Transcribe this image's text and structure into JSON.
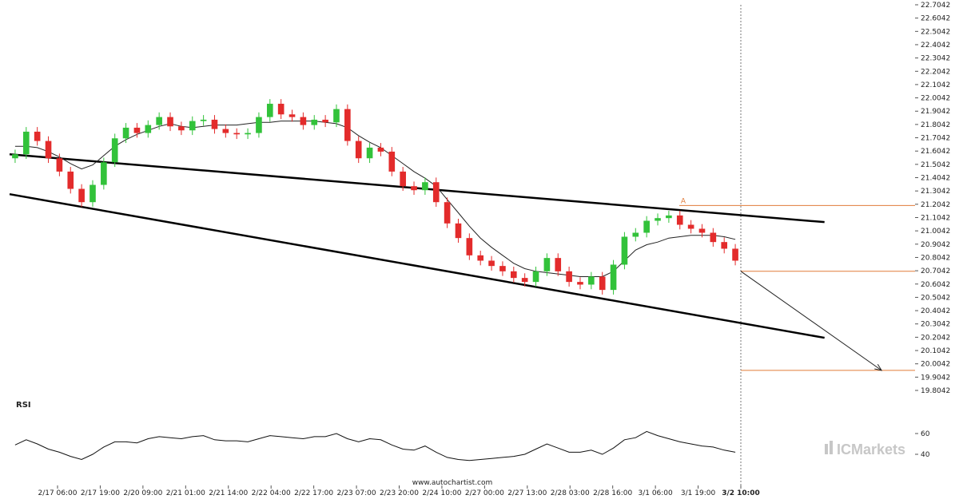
{
  "chart_data": {
    "type": "candlestick",
    "title": "",
    "rsi_title": "RSI",
    "watermark": "www.autochartist.com",
    "brand": "ICMarkets",
    "marker_label": "A",
    "y_ticks": [
      "22.7042",
      "22.6042",
      "22.5042",
      "22.4042",
      "22.3042",
      "22.2042",
      "22.1042",
      "22.0042",
      "21.9042",
      "21.8042",
      "21.7042",
      "21.6042",
      "21.5042",
      "21.4042",
      "21.3042",
      "21.2042",
      "21.1042",
      "21.0042",
      "20.9042",
      "20.8042",
      "20.7042",
      "20.6042",
      "20.5042",
      "20.4042",
      "20.3042",
      "20.2042",
      "20.1042",
      "20.0042",
      "19.9042",
      "19.8042"
    ],
    "ylim": [
      19.8042,
      22.7042
    ],
    "x_ticks": [
      "2/17 06:00",
      "2/17 19:00",
      "2/20 09:00",
      "2/21 01:00",
      "2/21 14:00",
      "2/22 04:00",
      "2/22 17:00",
      "2/23 07:00",
      "2/23 20:00",
      "2/24 10:00",
      "2/27 00:00",
      "2/27 13:00",
      "2/28 03:00",
      "2/28 16:00",
      "3/1 06:00",
      "3/1 19:00",
      "3/2 10:00"
    ],
    "rsi_ticks": [
      "60",
      "40"
    ],
    "rsi_ylim": [
      30,
      70
    ],
    "price_path": [
      21.58,
      21.75,
      21.68,
      21.55,
      21.45,
      21.32,
      21.22,
      21.35,
      21.52,
      21.7,
      21.78,
      21.74,
      21.8,
      21.86,
      21.79,
      21.76,
      21.83,
      21.84,
      21.77,
      21.74,
      21.73,
      21.74,
      21.86,
      21.96,
      21.88,
      21.86,
      21.8,
      21.84,
      21.82,
      21.92,
      21.68,
      21.55,
      21.63,
      21.6,
      21.45,
      21.34,
      21.31,
      21.37,
      21.22,
      21.06,
      20.95,
      20.82,
      20.78,
      20.74,
      20.7,
      20.65,
      20.62,
      20.7,
      20.8,
      20.7,
      20.62,
      20.6,
      20.66,
      20.56,
      20.75,
      20.96,
      20.99,
      21.08,
      21.1,
      21.12,
      21.05,
      21.02,
      20.99,
      20.92,
      20.87,
      20.78
    ],
    "moving_average": [
      21.64,
      21.64,
      21.63,
      21.6,
      21.56,
      21.51,
      21.47,
      21.5,
      21.57,
      21.64,
      21.69,
      21.73,
      21.76,
      21.79,
      21.81,
      21.79,
      21.78,
      21.79,
      21.8,
      21.8,
      21.8,
      21.81,
      21.82,
      21.82,
      21.83,
      21.83,
      21.83,
      21.83,
      21.82,
      21.81,
      21.78,
      21.72,
      21.67,
      21.63,
      21.57,
      21.51,
      21.45,
      21.4,
      21.34,
      21.24,
      21.14,
      21.04,
      20.95,
      20.88,
      20.82,
      20.76,
      20.72,
      20.7,
      20.69,
      20.68,
      20.67,
      20.66,
      20.66,
      20.66,
      20.7,
      20.78,
      20.86,
      20.9,
      20.92,
      20.95,
      20.96,
      20.97,
      20.97,
      20.97,
      20.96,
      20.94
    ],
    "rsi_values": [
      49,
      54,
      50,
      45,
      42,
      38,
      35,
      40,
      47,
      52,
      52,
      51,
      55,
      57,
      56,
      55,
      57,
      58,
      54,
      53,
      53,
      52,
      55,
      58,
      57,
      56,
      55,
      57,
      57,
      60,
      55,
      52,
      55,
      54,
      49,
      45,
      44,
      48,
      42,
      37,
      35,
      34,
      35,
      36,
      37,
      38,
      40,
      45,
      50,
      46,
      42,
      42,
      44,
      40,
      46,
      54,
      56,
      62,
      58,
      55,
      52,
      50,
      48,
      47,
      44,
      42
    ],
    "channel_upper": [
      [
        0,
        21.58
      ],
      [
        0.9,
        21.07
      ]
    ],
    "channel_lower": [
      [
        0,
        21.28
      ],
      [
        0.9,
        20.2
      ]
    ],
    "levels": [
      21.195,
      20.7,
      19.955
    ],
    "forecast_end": [
      0.963,
      19.955
    ]
  }
}
